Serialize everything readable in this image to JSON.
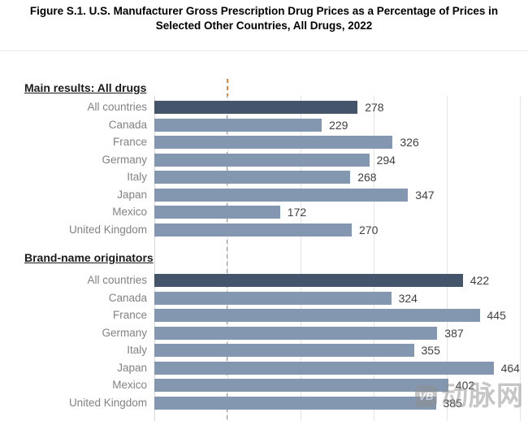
{
  "title": {
    "line1": "Figure S.1. U.S. Manufacturer Gross Prescription Drug Prices as a Percentage of Prices in",
    "line2": "Selected Other Countries, All Drugs, 2022"
  },
  "chart_data": {
    "type": "bar",
    "orientation": "horizontal",
    "unit": "percent_of_other_country_prices",
    "title": "U.S. Manufacturer Gross Prescription Drug Prices as a Percentage of Prices in Selected Other Countries, All Drugs, 2022",
    "axis": {
      "min": 0,
      "max": 500,
      "gridline_interval": 100,
      "grid": true,
      "tick_labels_visible": false
    },
    "reference_line": {
      "value": 100,
      "style": "dashed",
      "color": "#ED7D31"
    },
    "groups": [
      {
        "label": "Main results: All drugs",
        "categories": [
          "All countries",
          "Canada",
          "France",
          "Germany",
          "Italy",
          "Japan",
          "Mexico",
          "United Kingdom"
        ],
        "values": [
          278,
          229,
          326,
          294,
          268,
          347,
          172,
          270
        ]
      },
      {
        "label": "Brand-name originators",
        "categories": [
          "All countries",
          "Canada",
          "France",
          "Germany",
          "Italy",
          "Japan",
          "Mexico",
          "United Kingdom"
        ],
        "values": [
          422,
          324,
          445,
          387,
          355,
          464,
          402,
          385
        ]
      }
    ],
    "colors": {
      "highlight_bar": "#44546A",
      "default_bar": "#8497B0",
      "highlight_category": "All countries",
      "reference_line": "#ED7D31"
    },
    "legend": "none",
    "data_labels": "outside_end"
  },
  "watermark": {
    "logo_text": "VB",
    "text": "动脉网"
  }
}
